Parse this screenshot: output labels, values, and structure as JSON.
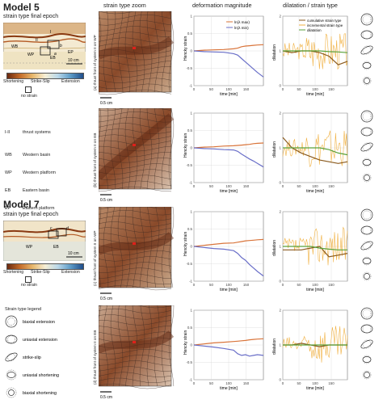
{
  "columns": {
    "zoom": "strain type zoom",
    "deformation": "deformation magnitude",
    "dilatation": "dilatation / strain type"
  },
  "model5": {
    "title": "Model 5",
    "subtitle": "strain type final epoch",
    "map_labels": [
      "I",
      "II",
      "WB",
      "WP",
      "EB",
      "EP"
    ],
    "point_labels": [
      "a",
      "b"
    ],
    "scale": "10 cm",
    "colorbar": [
      "Shortening",
      "Strike-Slip",
      "Extension"
    ],
    "no_strain": "no strain"
  },
  "legend_model5": [
    {
      "k": "I-II",
      "v": "thrust systems"
    },
    {
      "k": "WB",
      "v": "Western basin"
    },
    {
      "k": "WP",
      "v": "Western platform"
    },
    {
      "k": "EB",
      "v": "Eastern basin"
    },
    {
      "k": "EP",
      "v": "Eastern platform"
    }
  ],
  "model7": {
    "title": "Model 7",
    "subtitle": "strain type final epoch",
    "point_labels": [
      "c",
      "d"
    ],
    "map_labels": [
      "WP",
      "EB"
    ],
    "scale": "10 cm",
    "colorbar": [
      "Shortening",
      "Strike-Slip",
      "Extension"
    ],
    "no_strain": "no strain"
  },
  "strain_legend": {
    "title": "Strain type legend",
    "items": [
      "biaxial extension",
      "uniaxial extension",
      "strike-slip",
      "uniaxial shortening",
      "biaxial shortening"
    ]
  },
  "panels": [
    {
      "vlabel": "(a) thrust front of system II on WP",
      "scale": "0.5 cm"
    },
    {
      "vlabel": "(b) thrust front of system II on EB",
      "scale": "0.5 cm"
    },
    {
      "vlabel": "(c) thrust front of system II on WP",
      "scale": "0.5 cm"
    },
    {
      "vlabel": "(d) thrust front of system II on EB",
      "scale": "0.5 cm"
    }
  ],
  "deformation_axes": {
    "ylabel": "Hencky strain",
    "xlabel": "time [min]",
    "yticks": [
      "1",
      "0.5",
      "0",
      "-0.5",
      "-1"
    ],
    "xticks": [
      "0",
      "50",
      "100",
      "150"
    ],
    "legend": [
      "ln(λ max)",
      "ln(λ min)"
    ]
  },
  "dilatation_axes": {
    "ylabel": "dilatation",
    "xlabel": "time [min]",
    "yticks": [
      "2",
      "1",
      "0"
    ],
    "xticks": [
      "0",
      "50",
      "100",
      "150"
    ],
    "legend": [
      "cumulative strain type",
      "incremental strain type",
      "dilatation"
    ]
  },
  "colors": {
    "lambda_max": "#d9743a",
    "lambda_min": "#6a6fc8",
    "cumulative": "#8a5a1e",
    "incremental": "#f0b040",
    "dilatation": "#5aa23a",
    "grid": "#d8d8d8"
  },
  "chart_data": [
    {
      "type": "line",
      "panel": "a-deformation",
      "x": [
        0,
        25,
        50,
        75,
        100,
        110,
        120,
        130,
        140,
        150,
        160,
        175
      ],
      "series": [
        {
          "name": "ln(λ max)",
          "values": [
            0,
            0.02,
            0.03,
            0.04,
            0.06,
            0.08,
            0.12,
            0.14,
            0.15,
            0.16,
            0.17,
            0.18
          ]
        },
        {
          "name": "ln(λ min)",
          "values": [
            0,
            -0.02,
            -0.03,
            -0.04,
            -0.08,
            -0.12,
            -0.22,
            -0.32,
            -0.42,
            -0.52,
            -0.62,
            -0.75
          ]
        }
      ],
      "ylim": [
        -1,
        1
      ],
      "xlim": [
        0,
        175
      ]
    },
    {
      "type": "line",
      "panel": "b-deformation",
      "x": [
        0,
        25,
        50,
        75,
        100,
        110,
        120,
        130,
        140,
        150,
        160,
        175
      ],
      "series": [
        {
          "name": "ln(λ max)",
          "values": [
            0,
            0.02,
            0.03,
            0.05,
            0.06,
            0.07,
            0.08,
            0.09,
            0.1,
            0.12,
            0.13,
            0.14
          ]
        },
        {
          "name": "ln(λ min)",
          "values": [
            0,
            -0.02,
            -0.03,
            -0.05,
            -0.06,
            -0.1,
            -0.18,
            -0.25,
            -0.32,
            -0.38,
            -0.45,
            -0.55
          ]
        }
      ],
      "ylim": [
        -1,
        1
      ],
      "xlim": [
        0,
        175
      ]
    },
    {
      "type": "line",
      "panel": "c-deformation",
      "x": [
        0,
        25,
        50,
        75,
        100,
        110,
        120,
        130,
        140,
        150,
        160,
        175
      ],
      "series": [
        {
          "name": "ln(λ max)",
          "values": [
            0,
            0.03,
            0.06,
            0.09,
            0.1,
            0.12,
            0.14,
            0.16,
            0.17,
            0.18,
            0.19,
            0.2
          ]
        },
        {
          "name": "ln(λ min)",
          "values": [
            0,
            -0.03,
            -0.06,
            -0.08,
            -0.12,
            -0.2,
            -0.32,
            -0.4,
            -0.52,
            -0.62,
            -0.72,
            -0.85
          ]
        }
      ],
      "ylim": [
        -1,
        1
      ],
      "xlim": [
        0,
        175
      ]
    },
    {
      "type": "line",
      "panel": "d-deformation",
      "x": [
        0,
        25,
        50,
        75,
        100,
        110,
        120,
        130,
        140,
        150,
        160,
        175
      ],
      "series": [
        {
          "name": "ln(λ max)",
          "values": [
            0,
            0.03,
            0.06,
            0.08,
            0.1,
            0.11,
            0.12,
            0.13,
            0.15,
            0.16,
            0.17,
            0.18
          ]
        },
        {
          "name": "ln(λ min)",
          "values": [
            0,
            -0.03,
            -0.06,
            -0.1,
            -0.15,
            -0.25,
            -0.3,
            -0.28,
            -0.32,
            -0.3,
            -0.28,
            -0.3
          ]
        }
      ],
      "ylim": [
        -1,
        1
      ],
      "xlim": [
        0,
        175
      ]
    },
    {
      "type": "line",
      "panel": "a-dilatation",
      "x": [
        0,
        25,
        50,
        75,
        100,
        125,
        150,
        175
      ],
      "series": [
        {
          "name": "cumulative strain type",
          "values": [
            1.0,
            0.95,
            1.0,
            1.0,
            0.95,
            0.85,
            0.6,
            0.7
          ]
        },
        {
          "name": "dilatation",
          "values": [
            1.0,
            1.0,
            1.0,
            1.0,
            1.0,
            0.98,
            0.97,
            0.95
          ]
        }
      ],
      "ylim": [
        0,
        2
      ],
      "xlim": [
        0,
        175
      ]
    },
    {
      "type": "line",
      "panel": "b-dilatation",
      "x": [
        0,
        25,
        50,
        75,
        100,
        125,
        150,
        175
      ],
      "series": [
        {
          "name": "cumulative strain type",
          "values": [
            1.3,
            1.0,
            0.85,
            0.75,
            0.65,
            0.6,
            0.55,
            0.6
          ]
        },
        {
          "name": "dilatation",
          "values": [
            1.0,
            1.0,
            1.0,
            1.0,
            1.0,
            0.95,
            0.85,
            0.8
          ]
        }
      ],
      "ylim": [
        0,
        2
      ],
      "xlim": [
        0,
        175
      ]
    },
    {
      "type": "line",
      "panel": "c-dilatation",
      "x": [
        0,
        25,
        50,
        75,
        100,
        125,
        150,
        175
      ],
      "series": [
        {
          "name": "cumulative strain type",
          "values": [
            0.9,
            0.9,
            0.9,
            0.95,
            1.0,
            0.7,
            0.75,
            0.8
          ]
        },
        {
          "name": "dilatation",
          "values": [
            1.0,
            1.0,
            1.0,
            1.0,
            0.95,
            0.92,
            0.9,
            0.9
          ]
        }
      ],
      "ylim": [
        0,
        2
      ],
      "xlim": [
        0,
        175
      ]
    },
    {
      "type": "line",
      "panel": "d-dilatation",
      "x": [
        0,
        25,
        50,
        75,
        100,
        125,
        150,
        175
      ],
      "series": [
        {
          "name": "cumulative strain type",
          "values": [
            1.0,
            1.0,
            1.05,
            1.0,
            0.95,
            1.0,
            1.0,
            1.0
          ]
        },
        {
          "name": "dilatation",
          "values": [
            1.0,
            1.0,
            1.0,
            1.0,
            1.0,
            1.0,
            1.0,
            1.0
          ]
        }
      ],
      "ylim": [
        0,
        2
      ],
      "xlim": [
        0,
        175
      ]
    }
  ]
}
